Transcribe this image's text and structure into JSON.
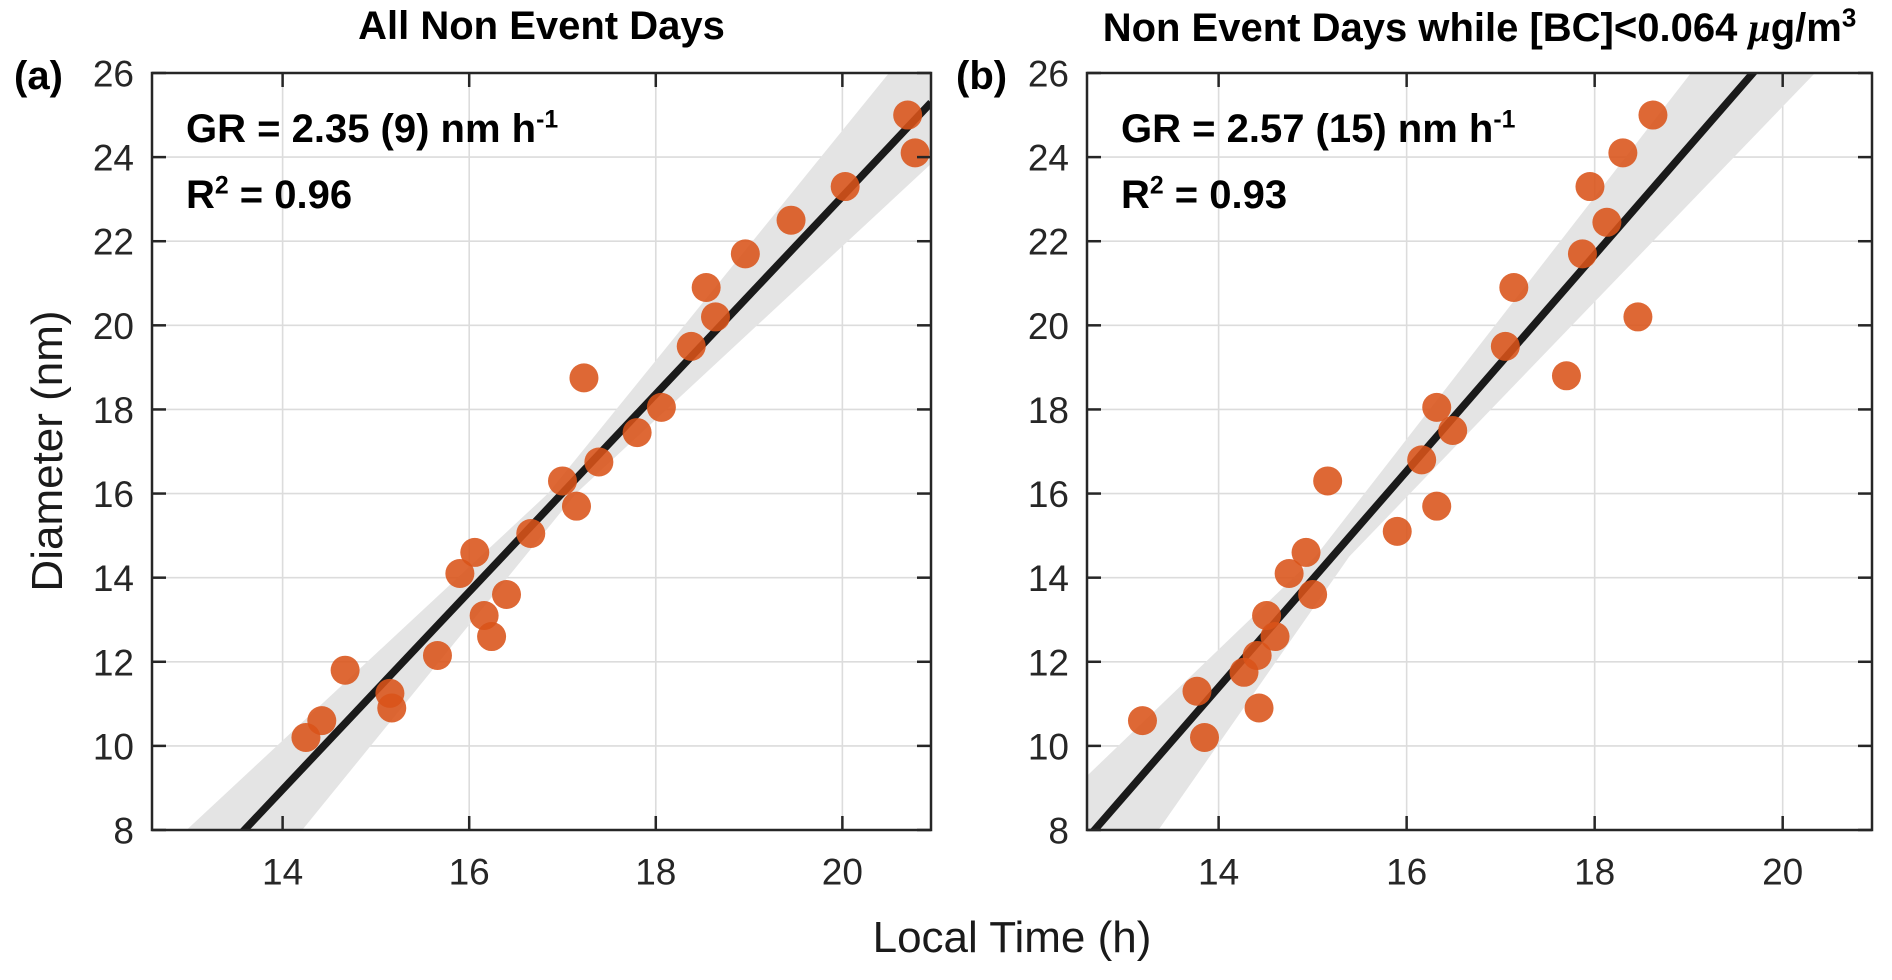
{
  "figure": {
    "xlabel": "Local Time (h)",
    "ylabel": "Diameter (nm)"
  },
  "colors": {
    "marker": "#d95319",
    "fit_line": "#1a1a1a",
    "confidence_band": "#e4e4e4",
    "grid": "#dcdcdc",
    "axis": "#262626",
    "tick_label": "#262626"
  },
  "chart_data": [
    {
      "type": "scatter",
      "panel_label": "(a)",
      "title": "All Non Event Days",
      "annotation": {
        "gr_prefix": "GR = 2.35 (9) nm h",
        "gr_sup": "-1",
        "r_base": "R",
        "r_sup": "2",
        "r_suffix": " = 0.96"
      },
      "xlabel": "Local Time (h)",
      "ylabel": "Diameter (nm)",
      "xlim": [
        12.6,
        20.95
      ],
      "ylim": [
        8,
        26
      ],
      "xticks": [
        14,
        16,
        18,
        20
      ],
      "yticks": [
        8,
        10,
        12,
        14,
        16,
        18,
        20,
        22,
        24,
        26
      ],
      "grid": true,
      "points": [
        [
          14.25,
          10.2
        ],
        [
          14.42,
          10.6
        ],
        [
          14.67,
          11.8
        ],
        [
          15.15,
          11.25
        ],
        [
          15.17,
          10.9
        ],
        [
          15.66,
          12.15
        ],
        [
          15.9,
          14.1
        ],
        [
          16.06,
          14.6
        ],
        [
          16.16,
          13.1
        ],
        [
          16.24,
          12.6
        ],
        [
          16.4,
          13.6
        ],
        [
          16.66,
          15.05
        ],
        [
          17.0,
          16.3
        ],
        [
          17.15,
          15.7
        ],
        [
          17.23,
          18.75
        ],
        [
          17.39,
          16.75
        ],
        [
          17.8,
          17.45
        ],
        [
          18.06,
          18.05
        ],
        [
          18.38,
          19.5
        ],
        [
          18.54,
          20.9
        ],
        [
          18.64,
          20.2
        ],
        [
          18.96,
          21.7
        ],
        [
          19.45,
          22.5
        ],
        [
          20.03,
          23.3
        ],
        [
          20.7,
          25.0
        ],
        [
          20.78,
          24.1
        ]
      ],
      "fit_line": {
        "slope_nm_per_h": 2.35,
        "crosses_8nm_at_h": 13.59
      },
      "confidence_band": {
        "pivot_diameter_nm": 16.0,
        "halfwidth_h_bottom": 0.62,
        "halfwidth_h_pivot": 0.15,
        "halfwidth_h_top": 0.75
      }
    },
    {
      "type": "scatter",
      "panel_label": "(b)",
      "title": "Non Event Days while [BC]<0.064 μg/m³",
      "title_parts": {
        "prefix": "Non Event Days while [BC]<0.064 ",
        "mu": "μ",
        "unit": "g/m",
        "sup": "3"
      },
      "annotation": {
        "gr_prefix": "GR = 2.57 (15) nm h",
        "gr_sup": "-1",
        "r_base": "R",
        "r_sup": "2",
        "r_suffix": " = 0.93"
      },
      "xlabel": "Local Time (h)",
      "ylabel": "Diameter (nm)",
      "xlim": [
        12.6,
        20.95
      ],
      "ylim": [
        8,
        26
      ],
      "xticks": [
        14,
        16,
        18,
        20
      ],
      "yticks": [
        8,
        10,
        12,
        14,
        16,
        18,
        20,
        22,
        24,
        26
      ],
      "grid": true,
      "points": [
        [
          13.19,
          10.6
        ],
        [
          13.77,
          11.3
        ],
        [
          13.85,
          10.2
        ],
        [
          14.27,
          11.75
        ],
        [
          14.41,
          12.15
        ],
        [
          14.43,
          10.9
        ],
        [
          14.51,
          13.1
        ],
        [
          14.6,
          12.6
        ],
        [
          14.75,
          14.1
        ],
        [
          14.93,
          14.6
        ],
        [
          15.0,
          13.6
        ],
        [
          15.16,
          16.3
        ],
        [
          15.9,
          15.1
        ],
        [
          16.16,
          16.8
        ],
        [
          16.32,
          15.7
        ],
        [
          16.32,
          18.05
        ],
        [
          16.49,
          17.5
        ],
        [
          17.05,
          19.5
        ],
        [
          17.14,
          20.9
        ],
        [
          17.7,
          18.8
        ],
        [
          17.87,
          21.7
        ],
        [
          17.95,
          23.3
        ],
        [
          18.13,
          22.45
        ],
        [
          18.3,
          24.1
        ],
        [
          18.46,
          20.2
        ],
        [
          18.62,
          25.0
        ]
      ],
      "fit_line": {
        "slope_nm_per_h": 2.57,
        "crosses_8nm_at_h": 12.68
      },
      "confidence_band": {
        "pivot_diameter_nm": 14.5,
        "halfwidth_h_bottom": 0.68,
        "halfwidth_h_pivot": 0.18,
        "halfwidth_h_top": 0.66
      }
    }
  ]
}
